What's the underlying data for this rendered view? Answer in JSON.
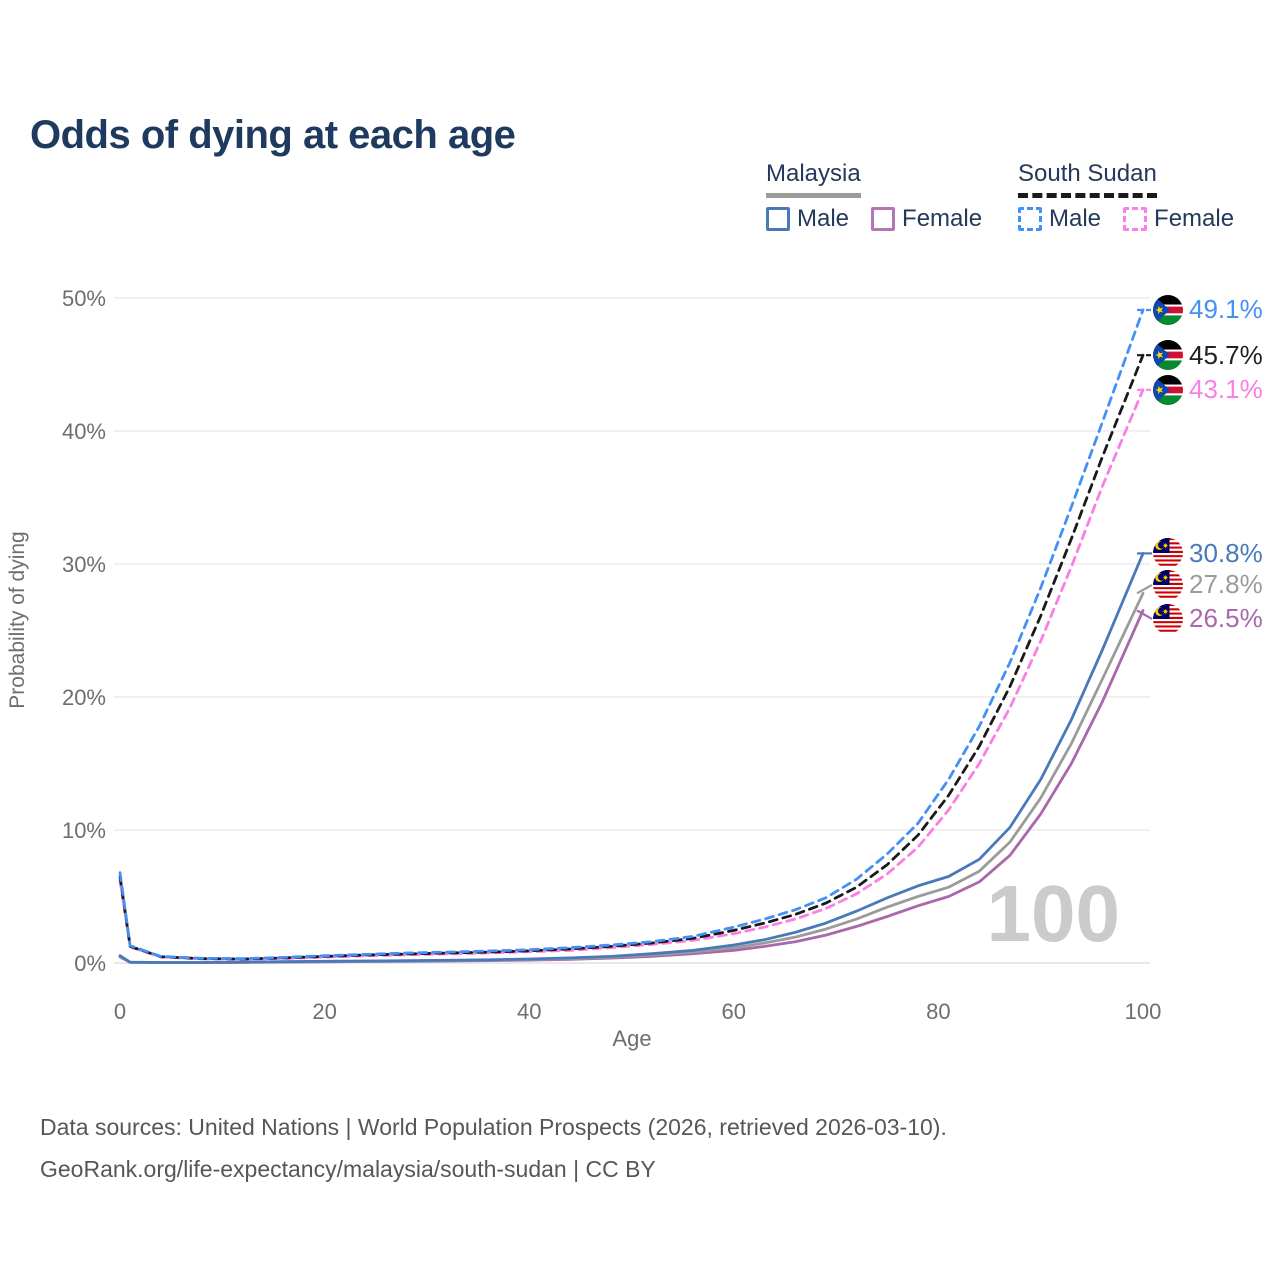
{
  "title": "Odds of dying at each age",
  "watermark": "100",
  "legend": {
    "groups": [
      {
        "country": "Malaysia",
        "style": "solid",
        "underline_color": "#9b9b9b",
        "items": [
          {
            "label": "Male",
            "color": "#4a79ba",
            "dashed": false
          },
          {
            "label": "Female",
            "color": "#b277b2",
            "dashed": false
          }
        ]
      },
      {
        "country": "South Sudan",
        "style": "dashed",
        "underline_color": "#1a1a1a",
        "items": [
          {
            "label": "Male",
            "color": "#4590f7",
            "dashed": true
          },
          {
            "label": "Female",
            "color": "#fb7ee4",
            "dashed": true
          }
        ]
      }
    ]
  },
  "footer": {
    "line1": "Data sources: United Nations | World Population Prospects (2026, retrieved 2026-03-10).",
    "line2": "GeoRank.org/life-expectancy/malaysia/south-sudan | CC BY"
  },
  "chart_data": {
    "type": "line",
    "title": "Odds of dying at each age",
    "xlabel": "Age",
    "ylabel": "Probability of dying",
    "xlim": [
      0,
      100
    ],
    "ylim": [
      0,
      50
    ],
    "x_ticks": [
      0,
      20,
      40,
      60,
      80,
      100
    ],
    "y_ticks": [
      0,
      10,
      20,
      30,
      40,
      50
    ],
    "y_tick_suffix": "%",
    "grid": "horizontal",
    "legend_position": "top-right",
    "age_cursor": "100",
    "x": [
      0,
      1,
      4,
      8,
      12,
      16,
      20,
      24,
      28,
      32,
      36,
      40,
      44,
      48,
      52,
      56,
      60,
      63,
      66,
      69,
      72,
      75,
      78,
      81,
      84,
      87,
      90,
      93,
      96,
      100
    ],
    "series": [
      {
        "name": "South Sudan Male",
        "flag": "south-sudan",
        "color": "#4590f7",
        "dashed": true,
        "end_label": "49.1%",
        "end_value": 49.1,
        "values": [
          6.8,
          1.3,
          0.5,
          0.35,
          0.33,
          0.42,
          0.55,
          0.65,
          0.75,
          0.82,
          0.9,
          1.0,
          1.15,
          1.35,
          1.6,
          2.0,
          2.7,
          3.3,
          4.0,
          4.9,
          6.3,
          8.2,
          10.5,
          13.8,
          17.8,
          22.6,
          28.2,
          34.3,
          40.6,
          49.1
        ]
      },
      {
        "name": "South Sudan Both sexes",
        "flag": "south-sudan",
        "color": "#1a1a1a",
        "dashed": true,
        "end_label": "45.7%",
        "end_value": 45.7,
        "values": [
          6.5,
          1.25,
          0.47,
          0.33,
          0.3,
          0.38,
          0.5,
          0.6,
          0.68,
          0.75,
          0.82,
          0.92,
          1.05,
          1.25,
          1.5,
          1.85,
          2.45,
          3.0,
          3.65,
          4.5,
          5.7,
          7.4,
          9.6,
          12.6,
          16.3,
          20.8,
          26.1,
          31.9,
          38.0,
          45.7
        ]
      },
      {
        "name": "South Sudan Female",
        "flag": "south-sudan",
        "color": "#fb7ee4",
        "dashed": true,
        "end_label": "43.1%",
        "end_value": 43.1,
        "values": [
          6.2,
          1.2,
          0.45,
          0.3,
          0.28,
          0.34,
          0.44,
          0.54,
          0.62,
          0.68,
          0.75,
          0.85,
          0.95,
          1.15,
          1.4,
          1.7,
          2.2,
          2.7,
          3.3,
          4.1,
          5.2,
          6.7,
          8.7,
          11.5,
          15.0,
          19.2,
          24.2,
          29.8,
          35.8,
          43.1
        ]
      },
      {
        "name": "Malaysia Male",
        "flag": "malaysia",
        "color": "#4a79ba",
        "dashed": false,
        "end_label": "30.8%",
        "end_value": 30.8,
        "values": [
          0.55,
          0.06,
          0.04,
          0.04,
          0.06,
          0.1,
          0.13,
          0.15,
          0.17,
          0.2,
          0.24,
          0.3,
          0.38,
          0.5,
          0.7,
          0.95,
          1.35,
          1.75,
          2.3,
          3.0,
          3.9,
          4.9,
          5.8,
          6.5,
          7.8,
          10.2,
          13.8,
          18.3,
          23.5,
          30.8
        ]
      },
      {
        "name": "Malaysia Both sexes",
        "flag": "malaysia",
        "color": "#9b9b9b",
        "dashed": false,
        "end_label": "27.8%",
        "end_value": 27.8,
        "values": [
          0.5,
          0.055,
          0.035,
          0.035,
          0.055,
          0.09,
          0.11,
          0.13,
          0.15,
          0.17,
          0.21,
          0.26,
          0.33,
          0.43,
          0.6,
          0.82,
          1.15,
          1.5,
          1.95,
          2.55,
          3.3,
          4.2,
          5.0,
          5.7,
          6.9,
          9.1,
          12.4,
          16.5,
          21.3,
          27.8
        ]
      },
      {
        "name": "Malaysia Female",
        "flag": "malaysia",
        "color": "#a868ab",
        "dashed": false,
        "end_label": "26.5%",
        "end_value": 26.5,
        "values": [
          0.45,
          0.05,
          0.03,
          0.03,
          0.05,
          0.07,
          0.09,
          0.11,
          0.13,
          0.15,
          0.18,
          0.22,
          0.28,
          0.37,
          0.5,
          0.7,
          0.95,
          1.25,
          1.6,
          2.1,
          2.75,
          3.5,
          4.3,
          5.0,
          6.1,
          8.1,
          11.2,
          15.0,
          19.6,
          26.5
        ]
      }
    ]
  }
}
